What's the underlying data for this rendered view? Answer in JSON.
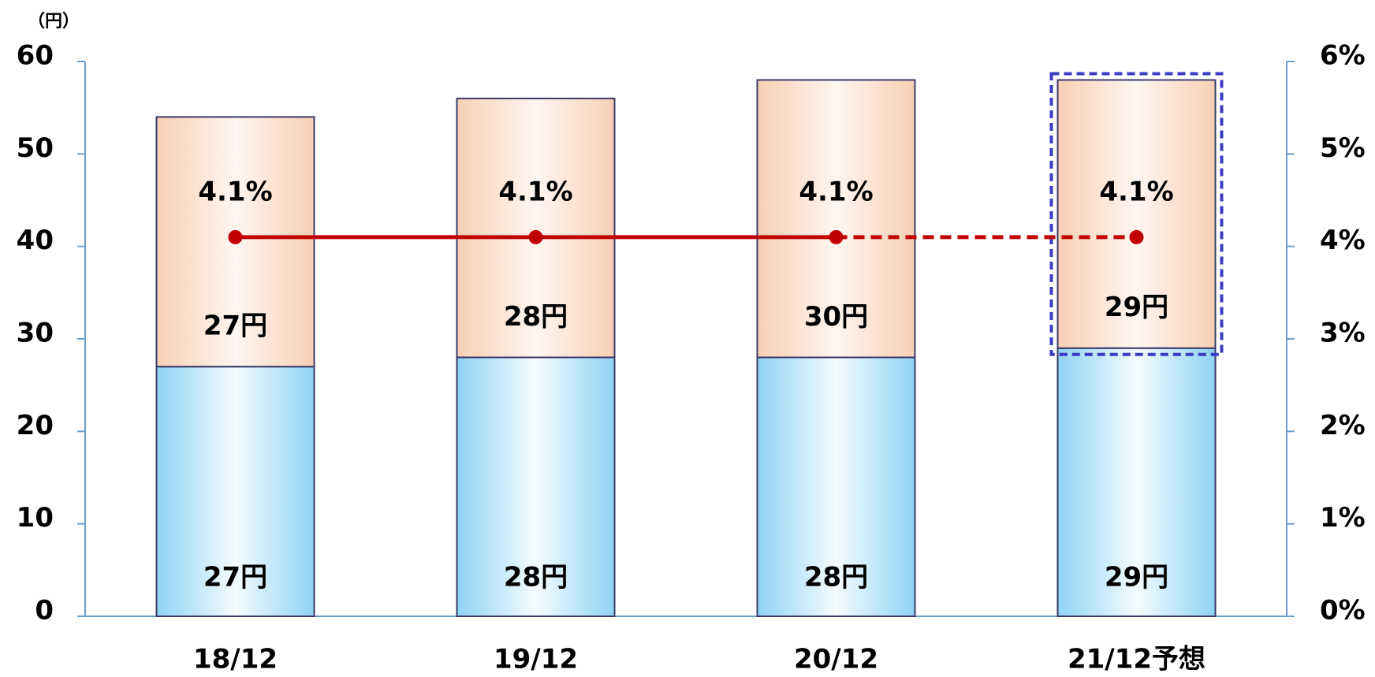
{
  "chart_data": {
    "type": "bar",
    "y_unit": "（円）",
    "categories": [
      "18/12",
      "19/12",
      "20/12",
      "21/12予想"
    ],
    "stacked": true,
    "forecast_index": 3,
    "forecast_color": "#3b3bc4",
    "series": [
      {
        "name": "base",
        "color": "#b8e6fb",
        "values": [
          27,
          28,
          28,
          29
        ],
        "value_labels": [
          "27円",
          "28円",
          "28円",
          "29円"
        ]
      },
      {
        "name": "top",
        "color": "#fde1cf",
        "values": [
          27,
          28,
          30,
          29
        ],
        "value_labels": [
          "27円",
          "28円",
          "30円",
          "29円"
        ]
      },
      {
        "name": "ratio",
        "type": "line",
        "axis": "y2",
        "color": "#c00000",
        "values": [
          4.1,
          4.1,
          4.1,
          4.1
        ],
        "value_labels": [
          "4.1%",
          "4.1%",
          "4.1%",
          "4.1%"
        ],
        "dashed_from": 2
      }
    ],
    "ylim": [
      0,
      60
    ],
    "yticks": [
      0,
      10,
      20,
      30,
      40,
      50,
      60
    ],
    "y2lim": [
      0,
      6
    ],
    "y2ticks": [
      {
        "value": 0,
        "label": "0%"
      },
      {
        "value": 1,
        "label": "1%"
      },
      {
        "value": 2,
        "label": "2%"
      },
      {
        "value": 3,
        "label": "3%"
      },
      {
        "value": 4,
        "label": "4%"
      },
      {
        "value": 5,
        "label": "5%"
      },
      {
        "value": 6,
        "label": "6%"
      }
    ]
  }
}
